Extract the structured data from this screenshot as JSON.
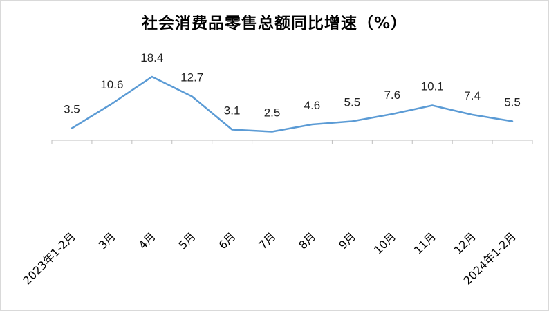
{
  "chart_data": {
    "type": "line",
    "title": "社会消费品零售总额同比增速（%）",
    "categories": [
      "2023年1-2月",
      "3月",
      "4月",
      "5月",
      "6月",
      "7月",
      "8月",
      "9月",
      "10月",
      "11月",
      "12月",
      "2024年1-2月"
    ],
    "series": [
      {
        "values": [
          3.5,
          10.6,
          18.4,
          12.7,
          3.1,
          2.5,
          4.6,
          5.5,
          7.6,
          10.1,
          7.4,
          5.5
        ]
      }
    ],
    "data_labels": [
      "3.5",
      "10.6",
      "18.4",
      "12.7",
      "3.1",
      "2.5",
      "4.6",
      "5.5",
      "7.6",
      "10.1",
      "7.4",
      "5.5"
    ],
    "ylim": [
      0,
      25
    ],
    "grid": false,
    "legend": "none",
    "line_color": "#5b9bd5",
    "axis_color": "#bfbfbf"
  }
}
